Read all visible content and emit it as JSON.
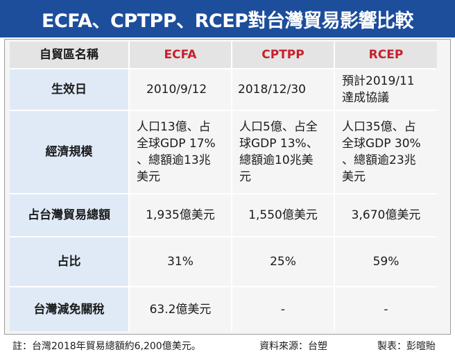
{
  "title": "ECFA、CPTPP、RCEP對台灣貿易影響比較",
  "table": {
    "header": {
      "label": "自貿區名稱",
      "columns": [
        "ECFA",
        "CPTPP",
        "RCEP"
      ]
    },
    "rows": [
      {
        "label": "生效日",
        "values": [
          [
            "2010/9/12"
          ],
          [
            "2018/12/30"
          ],
          [
            "預計2019/11",
            "達成協議"
          ]
        ]
      },
      {
        "label": "經濟規模",
        "values": [
          [
            "人口13億、占",
            "全球GDP 17%",
            "、總額逾13兆",
            "美元"
          ],
          [
            "人口5億、占全",
            "球GDP 13%、",
            "總額逾10兆美",
            "元"
          ],
          [
            "人口35億、占",
            "全球GDP 30%",
            "、總額逾23兆",
            "美元"
          ]
        ]
      },
      {
        "label": "占台灣貿易總額",
        "values": [
          [
            "1,935億美元"
          ],
          [
            "1,550億美元"
          ],
          [
            "3,670億美元"
          ]
        ]
      },
      {
        "label": "占比",
        "values": [
          [
            "31%"
          ],
          [
            "25%"
          ],
          [
            "59%"
          ]
        ]
      },
      {
        "label": "台灣減免關稅",
        "values": [
          [
            "63.2億美元"
          ],
          [
            "-"
          ],
          [
            "-"
          ]
        ]
      }
    ]
  },
  "footer": {
    "note": "註：台灣2018年貿易總額約6,200億美元。",
    "source": "資料來源：台塑",
    "credit": "製表：彭暄貽"
  },
  "colors": {
    "title_bg": "#1d4e9c",
    "header_text": "#c8202a",
    "label_bg": "#dfeaf6"
  }
}
